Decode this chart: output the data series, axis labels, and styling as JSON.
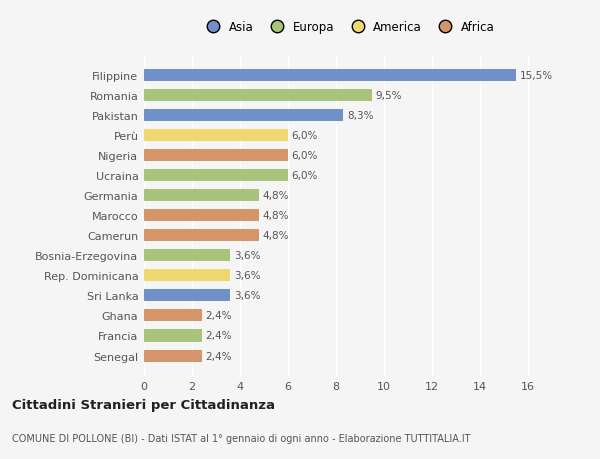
{
  "countries": [
    "Filippine",
    "Romania",
    "Pakistan",
    "Perù",
    "Nigeria",
    "Ucraina",
    "Germania",
    "Marocco",
    "Camerun",
    "Bosnia-Erzegovina",
    "Rep. Dominicana",
    "Sri Lanka",
    "Ghana",
    "Francia",
    "Senegal"
  ],
  "values": [
    15.5,
    9.5,
    8.3,
    6.0,
    6.0,
    6.0,
    4.8,
    4.8,
    4.8,
    3.6,
    3.6,
    3.6,
    2.4,
    2.4,
    2.4
  ],
  "labels": [
    "15,5%",
    "9,5%",
    "8,3%",
    "6,0%",
    "6,0%",
    "6,0%",
    "4,8%",
    "4,8%",
    "4,8%",
    "3,6%",
    "3,6%",
    "3,6%",
    "2,4%",
    "2,4%",
    "2,4%"
  ],
  "bar_colors": [
    "#7090c8",
    "#a8c47c",
    "#7090c8",
    "#f0d870",
    "#d4956a",
    "#a8c47c",
    "#a8c47c",
    "#d4956a",
    "#d4956a",
    "#a8c47c",
    "#f0d870",
    "#7090c8",
    "#d4956a",
    "#a8c47c",
    "#d4956a"
  ],
  "xlim": [
    0,
    17
  ],
  "xticks": [
    0,
    2,
    4,
    6,
    8,
    10,
    12,
    14,
    16
  ],
  "title": "Cittadini Stranieri per Cittadinanza",
  "subtitle": "COMUNE DI POLLONE (BI) - Dati ISTAT al 1° gennaio di ogni anno - Elaborazione TUTTITALIA.IT",
  "legend_labels": [
    "Asia",
    "Europa",
    "America",
    "Africa"
  ],
  "legend_colors": [
    "#7090c8",
    "#a8c47c",
    "#f0d870",
    "#d4956a"
  ],
  "background_color": "#f5f5f5",
  "bar_height": 0.6
}
